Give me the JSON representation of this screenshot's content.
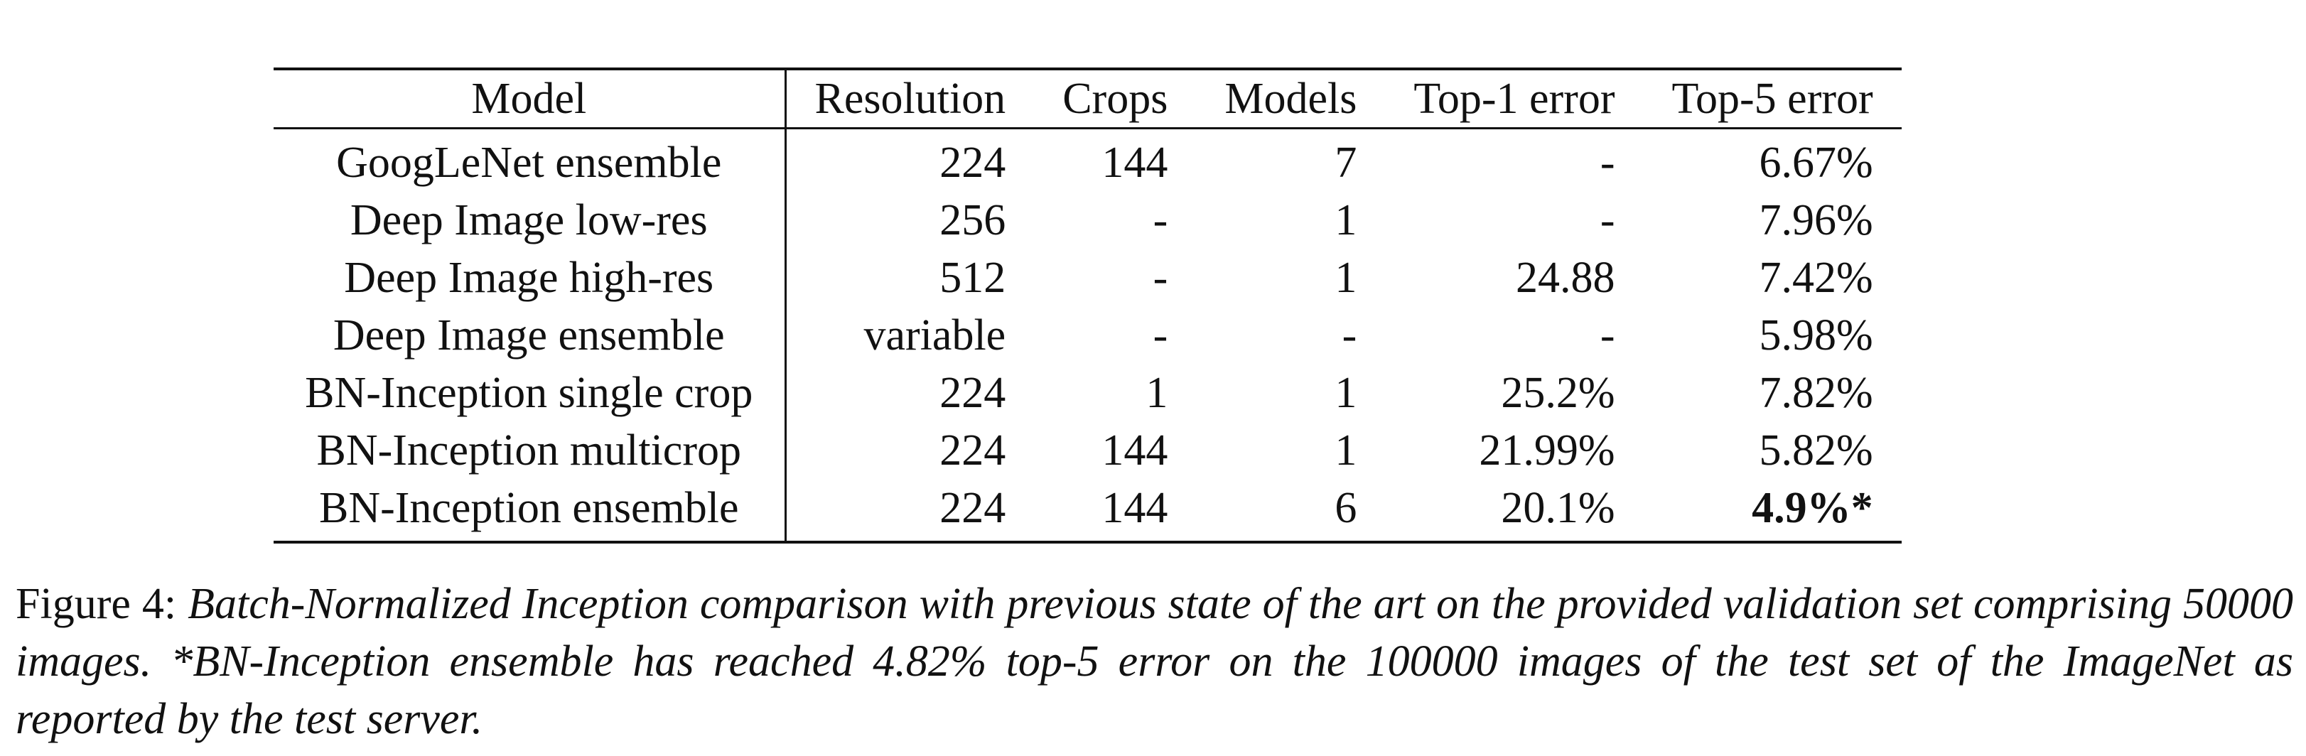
{
  "table": {
    "headers": [
      "Model",
      "Resolution",
      "Crops",
      "Models",
      "Top-1 error",
      "Top-5 error"
    ],
    "rows": [
      [
        "GoogLeNet ensemble",
        "224",
        "144",
        "7",
        "-",
        "6.67%"
      ],
      [
        "Deep Image low-res",
        "256",
        "-",
        "1",
        "-",
        "7.96%"
      ],
      [
        "Deep Image high-res",
        "512",
        "-",
        "1",
        "24.88",
        "7.42%"
      ],
      [
        "Deep Image ensemble",
        "variable",
        "-",
        "-",
        "-",
        "5.98%"
      ],
      [
        "BN-Inception single crop",
        "224",
        "1",
        "1",
        "25.2%",
        "7.82%"
      ],
      [
        "BN-Inception multicrop",
        "224",
        "144",
        "1",
        "21.99%",
        "5.82%"
      ],
      [
        "BN-Inception ensemble",
        "224",
        "144",
        "6",
        "20.1%",
        "4.9%*"
      ]
    ]
  },
  "caption": {
    "label": "Figure 4:",
    "text": "Batch-Normalized Inception comparison with previous state of the art on the provided validation set comprising 50000 images. *BN-Inception ensemble has reached 4.82% top-5 error on the 100000 images of the test set of the ImageNet as reported by the test server."
  }
}
